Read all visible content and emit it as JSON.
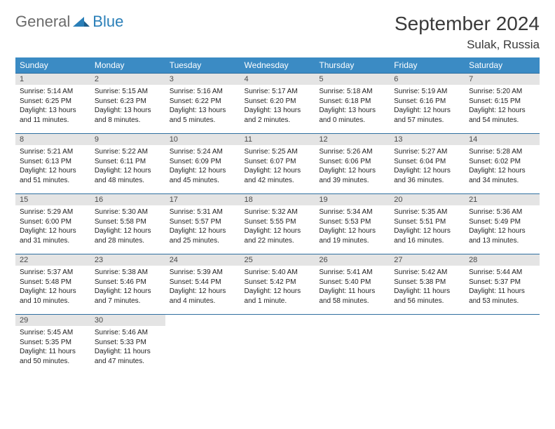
{
  "logo": {
    "general": "General",
    "blue": "Blue"
  },
  "title": "September 2024",
  "location": "Sulak, Russia",
  "colors": {
    "header_bg": "#3b8bc4",
    "header_text": "#ffffff",
    "daynum_bg": "#e4e4e4",
    "daynum_text": "#4a4a4a",
    "rule": "#2f6fa0",
    "logo_gray": "#6b6b6b",
    "logo_blue": "#2a7fb8"
  },
  "day_headers": [
    "Sunday",
    "Monday",
    "Tuesday",
    "Wednesday",
    "Thursday",
    "Friday",
    "Saturday"
  ],
  "weeks": [
    [
      {
        "n": "1",
        "sr": "5:14 AM",
        "ss": "6:25 PM",
        "dl": "13 hours and 11 minutes."
      },
      {
        "n": "2",
        "sr": "5:15 AM",
        "ss": "6:23 PM",
        "dl": "13 hours and 8 minutes."
      },
      {
        "n": "3",
        "sr": "5:16 AM",
        "ss": "6:22 PM",
        "dl": "13 hours and 5 minutes."
      },
      {
        "n": "4",
        "sr": "5:17 AM",
        "ss": "6:20 PM",
        "dl": "13 hours and 2 minutes."
      },
      {
        "n": "5",
        "sr": "5:18 AM",
        "ss": "6:18 PM",
        "dl": "13 hours and 0 minutes."
      },
      {
        "n": "6",
        "sr": "5:19 AM",
        "ss": "6:16 PM",
        "dl": "12 hours and 57 minutes."
      },
      {
        "n": "7",
        "sr": "5:20 AM",
        "ss": "6:15 PM",
        "dl": "12 hours and 54 minutes."
      }
    ],
    [
      {
        "n": "8",
        "sr": "5:21 AM",
        "ss": "6:13 PM",
        "dl": "12 hours and 51 minutes."
      },
      {
        "n": "9",
        "sr": "5:22 AM",
        "ss": "6:11 PM",
        "dl": "12 hours and 48 minutes."
      },
      {
        "n": "10",
        "sr": "5:24 AM",
        "ss": "6:09 PM",
        "dl": "12 hours and 45 minutes."
      },
      {
        "n": "11",
        "sr": "5:25 AM",
        "ss": "6:07 PM",
        "dl": "12 hours and 42 minutes."
      },
      {
        "n": "12",
        "sr": "5:26 AM",
        "ss": "6:06 PM",
        "dl": "12 hours and 39 minutes."
      },
      {
        "n": "13",
        "sr": "5:27 AM",
        "ss": "6:04 PM",
        "dl": "12 hours and 36 minutes."
      },
      {
        "n": "14",
        "sr": "5:28 AM",
        "ss": "6:02 PM",
        "dl": "12 hours and 34 minutes."
      }
    ],
    [
      {
        "n": "15",
        "sr": "5:29 AM",
        "ss": "6:00 PM",
        "dl": "12 hours and 31 minutes."
      },
      {
        "n": "16",
        "sr": "5:30 AM",
        "ss": "5:58 PM",
        "dl": "12 hours and 28 minutes."
      },
      {
        "n": "17",
        "sr": "5:31 AM",
        "ss": "5:57 PM",
        "dl": "12 hours and 25 minutes."
      },
      {
        "n": "18",
        "sr": "5:32 AM",
        "ss": "5:55 PM",
        "dl": "12 hours and 22 minutes."
      },
      {
        "n": "19",
        "sr": "5:34 AM",
        "ss": "5:53 PM",
        "dl": "12 hours and 19 minutes."
      },
      {
        "n": "20",
        "sr": "5:35 AM",
        "ss": "5:51 PM",
        "dl": "12 hours and 16 minutes."
      },
      {
        "n": "21",
        "sr": "5:36 AM",
        "ss": "5:49 PM",
        "dl": "12 hours and 13 minutes."
      }
    ],
    [
      {
        "n": "22",
        "sr": "5:37 AM",
        "ss": "5:48 PM",
        "dl": "12 hours and 10 minutes."
      },
      {
        "n": "23",
        "sr": "5:38 AM",
        "ss": "5:46 PM",
        "dl": "12 hours and 7 minutes."
      },
      {
        "n": "24",
        "sr": "5:39 AM",
        "ss": "5:44 PM",
        "dl": "12 hours and 4 minutes."
      },
      {
        "n": "25",
        "sr": "5:40 AM",
        "ss": "5:42 PM",
        "dl": "12 hours and 1 minute."
      },
      {
        "n": "26",
        "sr": "5:41 AM",
        "ss": "5:40 PM",
        "dl": "11 hours and 58 minutes."
      },
      {
        "n": "27",
        "sr": "5:42 AM",
        "ss": "5:38 PM",
        "dl": "11 hours and 56 minutes."
      },
      {
        "n": "28",
        "sr": "5:44 AM",
        "ss": "5:37 PM",
        "dl": "11 hours and 53 minutes."
      }
    ],
    [
      {
        "n": "29",
        "sr": "5:45 AM",
        "ss": "5:35 PM",
        "dl": "11 hours and 50 minutes."
      },
      {
        "n": "30",
        "sr": "5:46 AM",
        "ss": "5:33 PM",
        "dl": "11 hours and 47 minutes."
      },
      null,
      null,
      null,
      null,
      null
    ]
  ],
  "labels": {
    "sunrise": "Sunrise:",
    "sunset": "Sunset:",
    "daylight": "Daylight:"
  }
}
